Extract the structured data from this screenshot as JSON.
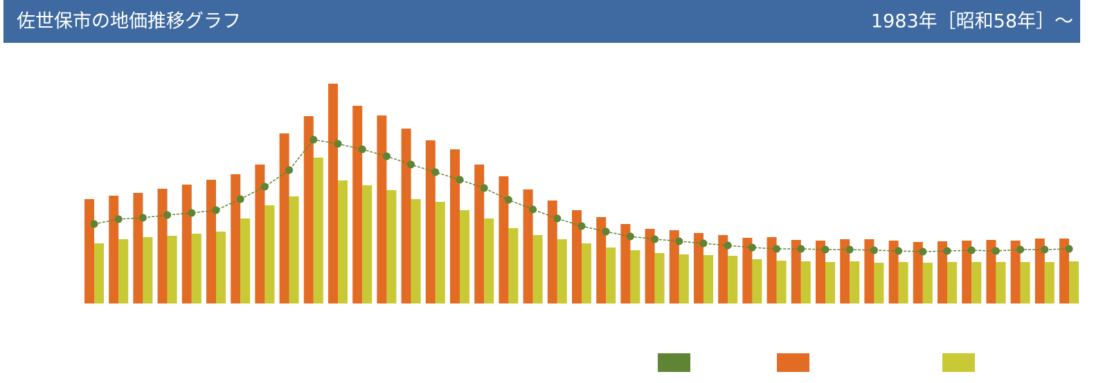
{
  "chart_data": {
    "type": "bar",
    "title": "佐世保市の地価推移グラフ",
    "subtitle": "1983年［昭和58年］～",
    "categories": [
      null,
      null,
      null,
      null,
      null,
      null,
      null,
      null,
      null,
      null,
      null,
      null,
      null,
      null,
      null,
      null,
      null,
      null,
      null,
      null,
      null,
      null,
      null,
      null,
      null,
      null,
      null,
      null,
      null,
      null,
      null,
      null,
      null,
      null,
      null,
      null,
      null,
      null,
      null,
      null,
      null
    ],
    "ylim": [
      0,
      330
    ],
    "series": [
      {
        "type": "line",
        "color": "#5f8433",
        "values": [
          115,
          122,
          124,
          128,
          131,
          135,
          151,
          169,
          193,
          237,
          231,
          223,
          213,
          201,
          190,
          179,
          167,
          150,
          136,
          123,
          112,
          104,
          97,
          93,
          90,
          87,
          84,
          81,
          79,
          79,
          78,
          78,
          77,
          76,
          75,
          76,
          77,
          76,
          78,
          78,
          79
        ]
      },
      {
        "type": "bar",
        "color": "#e36c25",
        "values": [
          151,
          156,
          160,
          166,
          172,
          179,
          187,
          201,
          246,
          271,
          318,
          286,
          272,
          253,
          236,
          223,
          201,
          184,
          165,
          149,
          135,
          125,
          115,
          108,
          106,
          102,
          99,
          95,
          96,
          92,
          91,
          93,
          93,
          91,
          89,
          90,
          91,
          92,
          91,
          94,
          94
        ]
      },
      {
        "type": "bar",
        "color": "#c9c935",
        "values": [
          87,
          93,
          96,
          98,
          101,
          104,
          123,
          142,
          155,
          211,
          178,
          171,
          164,
          151,
          147,
          135,
          123,
          109,
          99,
          93,
          87,
          81,
          77,
          73,
          71,
          70,
          69,
          64,
          62,
          61,
          60,
          61,
          59,
          60,
          59,
          60,
          60,
          60,
          60,
          60,
          61
        ]
      }
    ]
  }
}
